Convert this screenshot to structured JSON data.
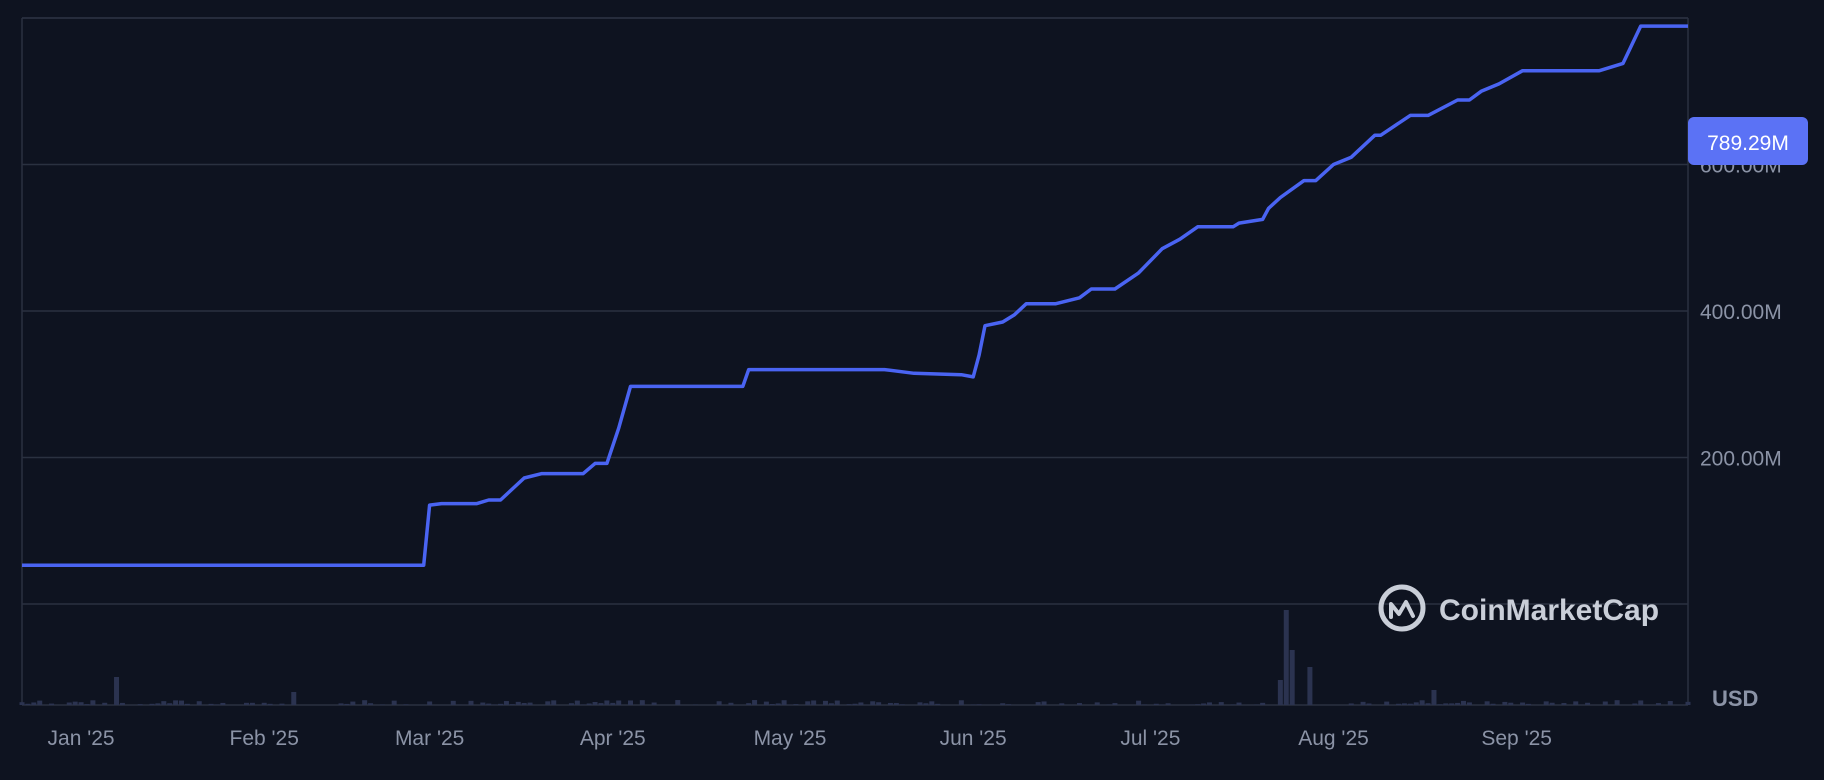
{
  "colors": {
    "background": "#0e1320",
    "grid": "#2a3140",
    "line": "#4a64f2",
    "price_tag_bg": "#5b72f5",
    "volume": "#2b3350",
    "axis_text": "#8b93a6"
  },
  "chart_data": {
    "type": "line",
    "x_tick_labels": [
      "Jan '25",
      "Feb '25",
      "Mar '25",
      "Apr '25",
      "May '25",
      "Jun '25",
      "Jul '25",
      "Aug '25",
      "Sep '25"
    ],
    "y_tick_labels": [
      "200.00M",
      "400.00M",
      "600.00M"
    ],
    "y_ticks": [
      200,
      400,
      600
    ],
    "ylim": [
      0,
      800
    ],
    "xlim": [
      "2024-12-22",
      "2025-09-30"
    ],
    "grid": true,
    "currency_label": "USD",
    "last_value_label": "789.29M",
    "last_value": 789.29,
    "watermark": "CoinMarketCap",
    "series": [
      {
        "x": [
          "2024-12-22",
          "2025-02-28",
          "2025-03-01",
          "2025-03-03",
          "2025-03-09",
          "2025-03-11",
          "2025-03-13",
          "2025-03-17",
          "2025-03-20",
          "2025-03-27",
          "2025-03-29",
          "2025-03-31",
          "2025-04-02",
          "2025-04-04",
          "2025-04-23",
          "2025-04-24",
          "2025-05-17",
          "2025-05-22",
          "2025-05-30",
          "2025-06-01",
          "2025-06-02",
          "2025-06-03",
          "2025-06-06",
          "2025-06-08",
          "2025-06-10",
          "2025-06-15",
          "2025-06-19",
          "2025-06-21",
          "2025-06-25",
          "2025-06-29",
          "2025-07-03",
          "2025-07-06",
          "2025-07-09",
          "2025-07-15",
          "2025-07-16",
          "2025-07-20",
          "2025-07-21",
          "2025-07-23",
          "2025-07-27",
          "2025-07-29",
          "2025-08-01",
          "2025-08-04",
          "2025-08-08",
          "2025-08-09",
          "2025-08-14",
          "2025-08-17",
          "2025-08-22",
          "2025-08-24",
          "2025-08-26",
          "2025-08-29",
          "2025-09-02",
          "2025-09-06",
          "2025-09-15",
          "2025-09-19",
          "2025-09-22",
          "2025-09-30"
        ],
        "values": [
          53,
          53,
          135,
          137,
          137,
          142,
          142,
          172,
          178,
          178,
          192,
          192,
          240,
          297,
          297,
          320,
          320,
          315,
          313,
          310,
          340,
          380,
          385,
          395,
          410,
          410,
          418,
          430,
          430,
          452,
          485,
          498,
          515,
          515,
          520,
          525,
          540,
          555,
          578,
          578,
          600,
          610,
          640,
          640,
          667,
          667,
          688,
          688,
          700,
          710,
          728,
          728,
          728,
          738,
          789,
          789
        ]
      }
    ],
    "volume": {
      "note": "relative volume bars at bottom, unlabeled",
      "spikes": [
        {
          "x": "2025-01-07",
          "value": 0.28
        },
        {
          "x": "2025-02-06",
          "value": 0.13
        },
        {
          "x": "2025-07-24",
          "value": 0.95
        },
        {
          "x": "2025-07-25",
          "value": 0.55
        },
        {
          "x": "2025-07-28",
          "value": 0.38
        },
        {
          "x": "2025-07-23",
          "value": 0.25
        },
        {
          "x": "2025-08-18",
          "value": 0.15
        }
      ]
    }
  }
}
